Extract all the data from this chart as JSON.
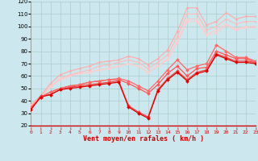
{
  "title": "",
  "xlabel": "Vent moyen/en rafales ( km/h )",
  "ylabel": "",
  "bg_color": "#cce8ee",
  "grid_color": "#aacccc",
  "x_values": [
    0,
    1,
    2,
    3,
    4,
    5,
    6,
    7,
    8,
    9,
    10,
    11,
    12,
    13,
    14,
    15,
    16,
    17,
    18,
    19,
    20,
    21,
    22,
    23
  ],
  "series": [
    {
      "color": "#ffaaaa",
      "linewidth": 0.8,
      "marker": "D",
      "markersize": 1.5,
      "y": [
        37,
        44,
        54,
        61,
        64,
        66,
        68,
        71,
        72,
        73,
        76,
        74,
        69,
        74,
        81,
        96,
        115,
        115,
        101,
        104,
        111,
        106,
        108,
        108
      ]
    },
    {
      "color": "#ffbbbb",
      "linewidth": 0.8,
      "marker": "D",
      "markersize": 1.5,
      "y": [
        36,
        43,
        52,
        58,
        61,
        63,
        65,
        68,
        69,
        71,
        73,
        71,
        66,
        71,
        77,
        92,
        110,
        110,
        97,
        100,
        106,
        102,
        104,
        104
      ]
    },
    {
      "color": "#ffcccc",
      "linewidth": 0.8,
      "marker": "D",
      "markersize": 1.5,
      "y": [
        35,
        42,
        51,
        57,
        60,
        62,
        63,
        65,
        66,
        68,
        70,
        68,
        63,
        68,
        74,
        88,
        106,
        106,
        94,
        97,
        102,
        98,
        100,
        100
      ]
    },
    {
      "color": "#ffcccc",
      "linewidth": 0.8,
      "marker": "D",
      "markersize": 1.5,
      "y": [
        36,
        43,
        52,
        58,
        60,
        62,
        63,
        65,
        66,
        68,
        70,
        68,
        63,
        68,
        73,
        87,
        104,
        104,
        93,
        95,
        101,
        97,
        99,
        99
      ]
    },
    {
      "color": "#ee4444",
      "linewidth": 0.9,
      "marker": "D",
      "markersize": 2.0,
      "y": [
        33,
        44,
        45,
        49,
        51,
        52,
        53,
        54,
        55,
        56,
        36,
        31,
        27,
        49,
        58,
        64,
        57,
        63,
        65,
        78,
        75,
        72,
        72,
        71
      ]
    },
    {
      "color": "#ff5555",
      "linewidth": 0.9,
      "marker": "D",
      "markersize": 2.0,
      "y": [
        34,
        43,
        47,
        50,
        52,
        53,
        55,
        56,
        57,
        57,
        54,
        50,
        46,
        53,
        62,
        68,
        60,
        66,
        67,
        80,
        77,
        74,
        74,
        71
      ]
    },
    {
      "color": "#ff6666",
      "linewidth": 0.9,
      "marker": "D",
      "markersize": 2.0,
      "y": [
        35,
        43,
        47,
        50,
        52,
        53,
        55,
        56,
        57,
        58,
        56,
        52,
        48,
        56,
        65,
        73,
        65,
        68,
        70,
        85,
        80,
        75,
        75,
        72
      ]
    },
    {
      "color": "#dd0000",
      "linewidth": 0.9,
      "marker": "D",
      "markersize": 2.0,
      "y": [
        33,
        43,
        45,
        49,
        50,
        51,
        52,
        53,
        54,
        55,
        35,
        30,
        26,
        48,
        57,
        63,
        56,
        62,
        64,
        77,
        74,
        71,
        71,
        70
      ]
    }
  ],
  "ylim": [
    20,
    120
  ],
  "xlim": [
    0,
    23
  ],
  "yticks": [
    20,
    30,
    40,
    50,
    60,
    70,
    80,
    90,
    100,
    110,
    120
  ],
  "xticks": [
    0,
    1,
    2,
    3,
    4,
    5,
    6,
    7,
    8,
    9,
    10,
    11,
    12,
    13,
    14,
    15,
    16,
    17,
    18,
    19,
    20,
    21,
    22,
    23
  ],
  "tick_arrow_color": "#cc0000",
  "xlabel_color": "#cc0000",
  "axis_label_fontsize": 6,
  "tick_fontsize": 4.5,
  "ytick_fontsize": 5.0
}
